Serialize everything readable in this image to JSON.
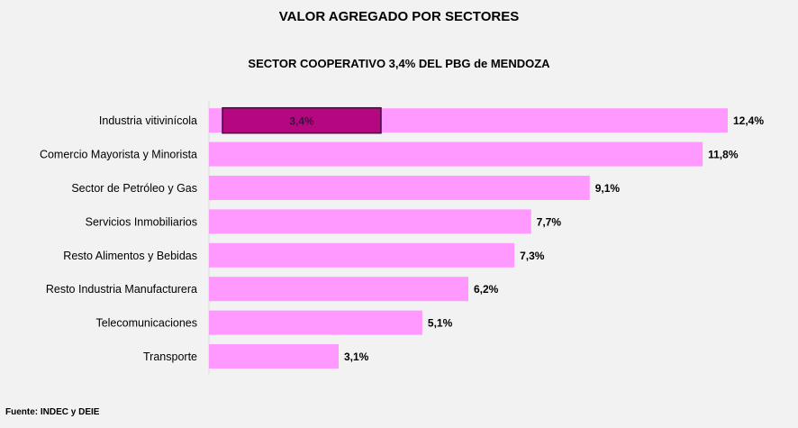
{
  "chart_data": {
    "type": "bar",
    "orientation": "horizontal",
    "title": "VALOR AGREGADO POR SECTORES",
    "subtitle": "SECTOR COOPERATIVO 3,4% DEL PBG de MENDOZA",
    "categories": [
      "Industria vitivinícola",
      "Comercio Mayorista y Minorista",
      "Sector de Petróleo y Gas",
      "Servicios Inmobiliarios",
      "Resto Alimentos y Bebidas",
      "Resto Industria Manufacturera",
      "Telecomunicaciones",
      "Transporte"
    ],
    "values": [
      12.4,
      11.8,
      9.1,
      7.7,
      7.3,
      6.2,
      5.1,
      3.1
    ],
    "data_labels": [
      "12,4%",
      "11,8%",
      "9,1%",
      "7,7%",
      "7,3%",
      "6,2%",
      "5,1%",
      "3,1%"
    ],
    "annotation": {
      "category": "Industria vitivinícola",
      "label": "3,4%",
      "value": 3.4
    },
    "xlim": [
      0,
      12.4
    ],
    "grid": false,
    "colors": {
      "bar": "#ff99ff",
      "highlight": "#b5077f",
      "highlight_border": "#3a1040",
      "background": "#f2f2f2"
    },
    "source": "Fuente: INDEC y DEIE"
  }
}
